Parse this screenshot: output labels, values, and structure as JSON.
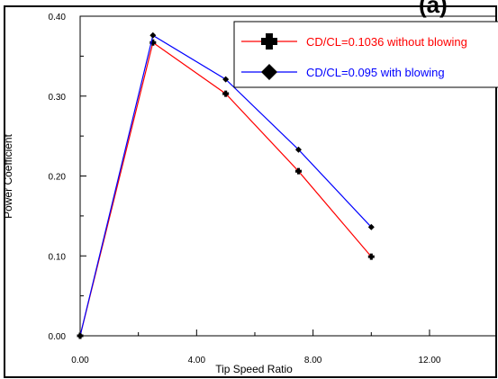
{
  "chart_data": {
    "type": "line",
    "title": "(a)",
    "xlabel": "Tip Speed Ratio",
    "ylabel": "Power Coefficient",
    "xlim": [
      0,
      12
    ],
    "ylim": [
      0,
      0.4
    ],
    "xticks": [
      "0.00",
      "4.00",
      "8.00",
      "12.00"
    ],
    "yticks": [
      "0.00",
      "0.10",
      "0.20",
      "0.30",
      "0.40"
    ],
    "grid": false,
    "legend_position": "top-right",
    "series": [
      {
        "name": "CD/CL=0.1036 without blowing",
        "color": "#ff0000",
        "marker": "plus",
        "x": [
          0,
          2.5,
          5,
          7.5,
          10
        ],
        "y": [
          0,
          0.367,
          0.303,
          0.206,
          0.099
        ]
      },
      {
        "name": "CD/CL=0.095 with blowing",
        "color": "#0000ff",
        "marker": "diamond",
        "x": [
          0,
          2.5,
          5,
          7.5,
          10
        ],
        "y": [
          0,
          0.376,
          0.321,
          0.233,
          0.136
        ]
      }
    ]
  }
}
